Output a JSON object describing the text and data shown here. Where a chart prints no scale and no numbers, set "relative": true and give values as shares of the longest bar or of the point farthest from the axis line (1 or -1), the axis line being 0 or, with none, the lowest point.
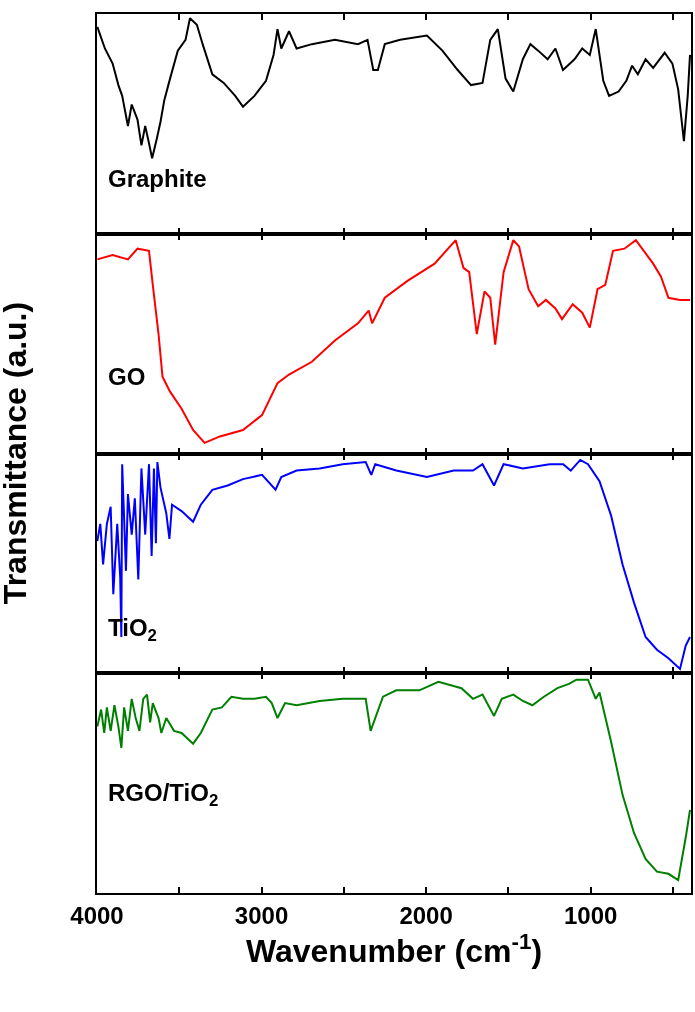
{
  "chart_data": [
    {
      "type": "line",
      "relative": true,
      "tick_labels": false,
      "ylabel": "Transmittance (a.u.)",
      "annotations": [
        "Graphite"
      ],
      "xlim": [
        4000,
        390
      ],
      "xticks": [
        4000,
        {
          "value": 3500,
          "label": null
        },
        3000,
        {
          "value": 2500,
          "label": null
        },
        2000,
        {
          "value": 1500,
          "label": null
        },
        1000,
        {
          "value": 500,
          "label": null
        }
      ],
      "series": [
        {
          "color": "#000000",
          "x": [
            3998,
            3952,
            3905,
            3870,
            3847,
            3812,
            3789,
            3754,
            3730,
            3707,
            3684,
            3665,
            3637,
            3614,
            3591,
            3556,
            3509,
            3462,
            3435,
            3393,
            3358,
            3299,
            3230,
            3160,
            3113,
            3043,
            2973,
            2927,
            2903,
            2880,
            2833,
            2787,
            2694,
            2554,
            2414,
            2356,
            2321,
            2293,
            2251,
            2158,
            1995,
            1901,
            1808,
            1727,
            1657,
            1610,
            1564,
            1517,
            1470,
            1412,
            1366,
            1319,
            1261,
            1214,
            1168,
            1098,
            1051,
            1005,
            969,
            923,
            888,
            830,
            783,
            748,
            713,
            666,
            620,
            550,
            503,
            468,
            433,
            410,
            396
          ],
          "values": [
            0.96,
            0.86,
            0.79,
            0.69,
            0.64,
            0.5,
            0.6,
            0.53,
            0.41,
            0.5,
            0.42,
            0.35,
            0.44,
            0.52,
            0.62,
            0.72,
            0.85,
            0.9,
            1,
            0.97,
            0.88,
            0.74,
            0.7,
            0.64,
            0.59,
            0.64,
            0.71,
            0.83,
            0.95,
            0.86,
            0.94,
            0.86,
            0.88,
            0.9,
            0.88,
            0.9,
            0.76,
            0.76,
            0.88,
            0.9,
            0.92,
            0.85,
            0.76,
            0.69,
            0.7,
            0.9,
            0.95,
            0.72,
            0.66,
            0.81,
            0.88,
            0.85,
            0.81,
            0.86,
            0.76,
            0.81,
            0.86,
            0.83,
            0.95,
            0.71,
            0.64,
            0.66,
            0.71,
            0.78,
            0.74,
            0.81,
            0.77,
            0.84,
            0.79,
            0.67,
            0.43,
            0.64,
            0.83
          ]
        }
      ]
    },
    {
      "type": "line",
      "relative": true,
      "tick_labels": false,
      "annotations": [
        "GO"
      ],
      "xlim": [
        4000,
        390
      ],
      "xticks": [
        4000,
        {
          "value": 3500,
          "label": null
        },
        3000,
        {
          "value": 2500,
          "label": null
        },
        2000,
        {
          "value": 1500,
          "label": null
        },
        1000,
        {
          "value": 500,
          "label": null
        }
      ],
      "series": [
        {
          "color": "#ff0000",
          "x": [
            3998,
            3905,
            3812,
            3754,
            3684,
            3661,
            3626,
            3602,
            3556,
            3486,
            3416,
            3346,
            3253,
            3113,
            2997,
            2903,
            2833,
            2694,
            2554,
            2414,
            2349,
            2328,
            2251,
            2111,
            1948,
            1820,
            1773,
            1738,
            1692,
            1645,
            1610,
            1580,
            1529,
            1470,
            1435,
            1377,
            1319,
            1272,
            1214,
            1174,
            1109,
            1051,
            1005,
            958,
            911,
            864,
            795,
            725,
            620,
            573,
            527,
            457,
            396
          ],
          "values": [
            0.91,
            0.93,
            0.91,
            0.96,
            0.95,
            0.79,
            0.56,
            0.36,
            0.29,
            0.21,
            0.11,
            0.05,
            0.08,
            0.11,
            0.18,
            0.33,
            0.37,
            0.43,
            0.53,
            0.61,
            0.67,
            0.61,
            0.73,
            0.81,
            0.89,
            1,
            0.87,
            0.85,
            0.56,
            0.76,
            0.73,
            0.51,
            0.85,
            1,
            0.97,
            0.77,
            0.69,
            0.72,
            0.68,
            0.63,
            0.7,
            0.66,
            0.59,
            0.77,
            0.79,
            0.95,
            0.96,
            1,
            0.89,
            0.83,
            0.73,
            0.72,
            0.72
          ]
        }
      ]
    },
    {
      "type": "line",
      "relative": true,
      "tick_labels": false,
      "annotations": [
        "TiO$_{2}$"
      ],
      "xlim": [
        4000,
        390
      ],
      "xticks": [
        4000,
        {
          "value": 3500,
          "label": null
        },
        3000,
        {
          "value": 2500,
          "label": null
        },
        2000,
        {
          "value": 1500,
          "label": null
        },
        1000,
        {
          "value": 500,
          "label": null
        }
      ],
      "series": [
        {
          "color": "#0000ff",
          "x": [
            3998,
            3980,
            3963,
            3940,
            3917,
            3901,
            3877,
            3859,
            3852,
            3847,
            3824,
            3812,
            3789,
            3770,
            3749,
            3730,
            3707,
            3684,
            3668,
            3654,
            3642,
            3633,
            3614,
            3579,
            3560,
            3544,
            3486,
            3416,
            3369,
            3299,
            3206,
            3113,
            2997,
            2915,
            2880,
            2787,
            2647,
            2507,
            2367,
            2333,
            2309,
            2181,
            1995,
            1832,
            1715,
            1657,
            1587,
            1529,
            1412,
            1249,
            1167,
            1121,
            1063,
            1016,
            946,
            876,
            806,
            736,
            666,
            597,
            527,
            457,
            422,
            396
          ],
          "values": [
            0.62,
            0.7,
            0.51,
            0.7,
            0.78,
            0.37,
            0.7,
            0.45,
            0.17,
            0.98,
            0.48,
            0.84,
            0.65,
            0.82,
            0.44,
            0.96,
            0.65,
            0.98,
            0.55,
            0.96,
            0.61,
            0.99,
            0.87,
            0.75,
            0.63,
            0.79,
            0.76,
            0.71,
            0.79,
            0.86,
            0.88,
            0.91,
            0.93,
            0.86,
            0.92,
            0.95,
            0.96,
            0.98,
            0.99,
            0.93,
            0.98,
            0.95,
            0.92,
            0.95,
            0.95,
            0.98,
            0.88,
            0.98,
            0.96,
            0.98,
            0.98,
            0.95,
            1,
            0.98,
            0.9,
            0.74,
            0.51,
            0.33,
            0.17,
            0.11,
            0.07,
            0.02,
            0.13,
            0.17
          ]
        }
      ]
    },
    {
      "type": "line",
      "relative": true,
      "xlabel": "Wavenumber (cm$^{-1}$)",
      "annotations": [
        "RGO/TiO$_{2}$"
      ],
      "xlim": [
        4000,
        390
      ],
      "xticks": [
        4000,
        {
          "value": 3500,
          "label": null
        },
        3000,
        {
          "value": 2500,
          "label": null
        },
        2000,
        {
          "value": 1500,
          "label": null
        },
        1000,
        {
          "value": 500,
          "label": null
        }
      ],
      "series": [
        {
          "color": "#008000",
          "x": [
            3998,
            3975,
            3956,
            3940,
            3917,
            3894,
            3870,
            3852,
            3835,
            3812,
            3789,
            3765,
            3742,
            3719,
            3696,
            3677,
            3661,
            3626,
            3609,
            3579,
            3532,
            3486,
            3416,
            3369,
            3299,
            3241,
            3183,
            3113,
            3043,
            2973,
            2938,
            2903,
            2857,
            2787,
            2647,
            2507,
            2367,
            2337,
            2309,
            2262,
            2181,
            2041,
            1925,
            1785,
            1715,
            1657,
            1587,
            1540,
            1470,
            1412,
            1354,
            1284,
            1202,
            1132,
            1086,
            1016,
            969,
            946,
            876,
            806,
            736,
            666,
            597,
            527,
            468,
            422,
            396
          ],
          "values": [
            0.78,
            0.86,
            0.75,
            0.87,
            0.76,
            0.88,
            0.78,
            0.68,
            0.87,
            0.76,
            0.91,
            0.82,
            0.76,
            0.91,
            0.93,
            0.8,
            0.89,
            0.82,
            0.75,
            0.82,
            0.76,
            0.75,
            0.7,
            0.75,
            0.86,
            0.87,
            0.92,
            0.91,
            0.91,
            0.92,
            0.89,
            0.82,
            0.89,
            0.88,
            0.9,
            0.91,
            0.91,
            0.76,
            0.82,
            0.92,
            0.95,
            0.95,
            0.99,
            0.96,
            0.91,
            0.93,
            0.83,
            0.91,
            0.93,
            0.9,
            0.88,
            0.92,
            0.96,
            0.98,
            1,
            1,
            0.91,
            0.94,
            0.71,
            0.46,
            0.28,
            0.16,
            0.1,
            0.09,
            0.06,
            0.26,
            0.39
          ]
        }
      ]
    }
  ]
}
